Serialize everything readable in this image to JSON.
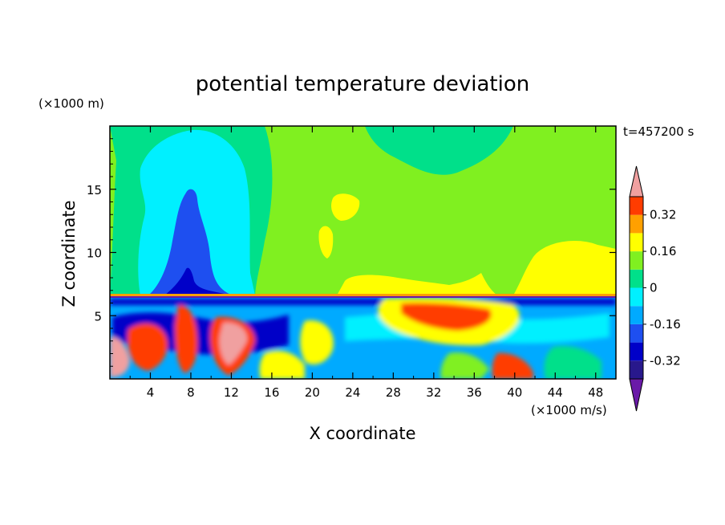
{
  "chart_data": {
    "type": "heatmap",
    "title": "potential temperature deviation",
    "xlabel": "X coordinate",
    "ylabel": "Z coordinate",
    "x_unit": "(×1000 m/s)",
    "y_unit": "(×1000 m)",
    "time_label": "t=457200 s",
    "xlim": [
      0,
      50
    ],
    "ylim": [
      0,
      20
    ],
    "x_ticks": [
      "4",
      "8",
      "12",
      "16",
      "20",
      "24",
      "28",
      "32",
      "36",
      "40",
      "44",
      "48"
    ],
    "y_ticks": [
      "5",
      "10",
      "15"
    ],
    "colorbar": {
      "tick_labels": [
        "0.32",
        "0.16",
        "0",
        "-0.16",
        "-0.32"
      ],
      "tick_values": [
        0.32,
        0.16,
        0,
        -0.16,
        -0.32
      ],
      "levels": [
        -0.4,
        -0.32,
        -0.24,
        -0.16,
        -0.08,
        0,
        0.08,
        0.16,
        0.24,
        0.32,
        0.4
      ],
      "colors": [
        "#6a1aa8",
        "#28188c",
        "#0000c8",
        "#1e4ff0",
        "#00aaff",
        "#00f0ff",
        "#00e08a",
        "#80f020",
        "#ffff00",
        "#ffa000",
        "#ff3c00",
        "#f0a0a0"
      ]
    }
  }
}
